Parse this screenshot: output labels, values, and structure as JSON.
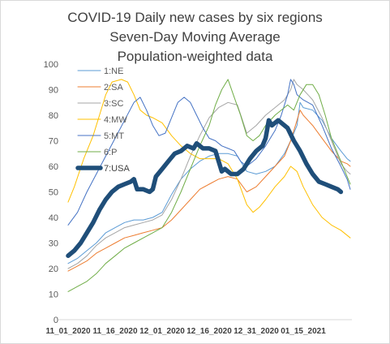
{
  "chart_data": {
    "type": "line",
    "title_lines": [
      "COVID-19 Daily new cases by six regions",
      "Seven-Day Moving Average",
      "Population-weighted data"
    ],
    "ylim": [
      0,
      100
    ],
    "yticks": [
      "0",
      "10",
      "20",
      "30",
      "40",
      "50",
      "60",
      "70",
      "80",
      "90",
      "100"
    ],
    "grid": false,
    "legend_position": "upper-left inside plot",
    "x_tick_labels": [
      "11_01_2020",
      "11_16_2020",
      "12_01_2020",
      "12_16_2020",
      "12_31_2020",
      "01_15_2021"
    ],
    "x_day_ticks": [
      0,
      15,
      30,
      45,
      60,
      75
    ],
    "x_day_max": 90,
    "series": [
      {
        "name": "1:NE",
        "color": "#5b9bd5",
        "points": [
          [
            0,
            22
          ],
          [
            3,
            24
          ],
          [
            6,
            27
          ],
          [
            9,
            30
          ],
          [
            12,
            34
          ],
          [
            15,
            36
          ],
          [
            18,
            38
          ],
          [
            21,
            39
          ],
          [
            24,
            39
          ],
          [
            27,
            40
          ],
          [
            30,
            42
          ],
          [
            33,
            49
          ],
          [
            36,
            55
          ],
          [
            39,
            59
          ],
          [
            42,
            62
          ],
          [
            45,
            64
          ],
          [
            48,
            65
          ],
          [
            51,
            65
          ],
          [
            54,
            64
          ],
          [
            57,
            58
          ],
          [
            60,
            57
          ],
          [
            63,
            58
          ],
          [
            66,
            60
          ],
          [
            69,
            65
          ],
          [
            71,
            70
          ],
          [
            73,
            76
          ],
          [
            74,
            85
          ],
          [
            75,
            83
          ],
          [
            78,
            82
          ],
          [
            81,
            78
          ],
          [
            84,
            71
          ],
          [
            87,
            66
          ],
          [
            89,
            63
          ],
          [
            90,
            62
          ]
        ]
      },
      {
        "name": "2:SA",
        "color": "#ed7d31",
        "points": [
          [
            0,
            19
          ],
          [
            3,
            21
          ],
          [
            6,
            23
          ],
          [
            9,
            26
          ],
          [
            12,
            28
          ],
          [
            15,
            30
          ],
          [
            18,
            32
          ],
          [
            21,
            33
          ],
          [
            24,
            34
          ],
          [
            27,
            35
          ],
          [
            30,
            36
          ],
          [
            33,
            39
          ],
          [
            36,
            43
          ],
          [
            39,
            47
          ],
          [
            42,
            51
          ],
          [
            45,
            53
          ],
          [
            48,
            55
          ],
          [
            51,
            56
          ],
          [
            54,
            55
          ],
          [
            57,
            50
          ],
          [
            60,
            52
          ],
          [
            63,
            56
          ],
          [
            66,
            60
          ],
          [
            69,
            64
          ],
          [
            71,
            70
          ],
          [
            73,
            78
          ],
          [
            74,
            82
          ],
          [
            75,
            80
          ],
          [
            78,
            76
          ],
          [
            81,
            71
          ],
          [
            84,
            66
          ],
          [
            87,
            62
          ],
          [
            89,
            61
          ],
          [
            90,
            60
          ]
        ]
      },
      {
        "name": "3:SC",
        "color": "#a5a5a5",
        "points": [
          [
            0,
            20
          ],
          [
            3,
            22
          ],
          [
            6,
            25
          ],
          [
            9,
            29
          ],
          [
            12,
            32
          ],
          [
            15,
            34
          ],
          [
            18,
            36
          ],
          [
            21,
            37
          ],
          [
            24,
            38
          ],
          [
            27,
            39
          ],
          [
            30,
            41
          ],
          [
            33,
            47
          ],
          [
            36,
            55
          ],
          [
            39,
            64
          ],
          [
            42,
            72
          ],
          [
            45,
            79
          ],
          [
            48,
            83
          ],
          [
            51,
            85
          ],
          [
            54,
            84
          ],
          [
            57,
            73
          ],
          [
            60,
            76
          ],
          [
            63,
            80
          ],
          [
            66,
            83
          ],
          [
            69,
            86
          ],
          [
            71,
            90
          ],
          [
            72,
            94
          ],
          [
            73,
            92
          ],
          [
            75,
            90
          ],
          [
            78,
            86
          ],
          [
            81,
            79
          ],
          [
            84,
            70
          ],
          [
            87,
            61
          ],
          [
            89,
            58
          ],
          [
            90,
            57
          ]
        ]
      },
      {
        "name": "4:MW",
        "color": "#ffc000",
        "points": [
          [
            0,
            46
          ],
          [
            2,
            52
          ],
          [
            5,
            63
          ],
          [
            8,
            72
          ],
          [
            10,
            80
          ],
          [
            12,
            88
          ],
          [
            14,
            93
          ],
          [
            17,
            94
          ],
          [
            19,
            93
          ],
          [
            21,
            88
          ],
          [
            23,
            82
          ],
          [
            25,
            80
          ],
          [
            27,
            79
          ],
          [
            30,
            77
          ],
          [
            33,
            72
          ],
          [
            36,
            68
          ],
          [
            39,
            65
          ],
          [
            42,
            63
          ],
          [
            45,
            63
          ],
          [
            48,
            63
          ],
          [
            51,
            61
          ],
          [
            54,
            55
          ],
          [
            57,
            45
          ],
          [
            59,
            42
          ],
          [
            61,
            44
          ],
          [
            63,
            47
          ],
          [
            66,
            52
          ],
          [
            69,
            56
          ],
          [
            71,
            60
          ],
          [
            73,
            58
          ],
          [
            75,
            52
          ],
          [
            78,
            45
          ],
          [
            81,
            40
          ],
          [
            84,
            37
          ],
          [
            87,
            35
          ],
          [
            90,
            32
          ]
        ]
      },
      {
        "name": "5:MT",
        "color": "#4472c4",
        "points": [
          [
            0,
            37
          ],
          [
            3,
            42
          ],
          [
            6,
            50
          ],
          [
            9,
            57
          ],
          [
            12,
            64
          ],
          [
            15,
            71
          ],
          [
            18,
            78
          ],
          [
            21,
            85
          ],
          [
            23,
            87
          ],
          [
            25,
            82
          ],
          [
            27,
            76
          ],
          [
            29,
            72
          ],
          [
            31,
            73
          ],
          [
            33,
            79
          ],
          [
            35,
            85
          ],
          [
            37,
            87
          ],
          [
            39,
            85
          ],
          [
            41,
            80
          ],
          [
            43,
            75
          ],
          [
            45,
            71
          ],
          [
            47,
            70
          ],
          [
            49,
            68
          ],
          [
            51,
            67
          ],
          [
            53,
            66
          ],
          [
            55,
            62
          ],
          [
            57,
            60
          ],
          [
            60,
            63
          ],
          [
            63,
            68
          ],
          [
            66,
            74
          ],
          [
            68,
            80
          ],
          [
            70,
            88
          ],
          [
            71,
            94
          ],
          [
            72,
            92
          ],
          [
            73,
            88
          ],
          [
            75,
            86
          ],
          [
            78,
            84
          ],
          [
            81,
            76
          ],
          [
            84,
            67
          ],
          [
            87,
            60
          ],
          [
            89,
            55
          ],
          [
            90,
            51
          ]
        ]
      },
      {
        "name": "6:P",
        "color": "#70ad47",
        "points": [
          [
            0,
            11
          ],
          [
            3,
            13
          ],
          [
            6,
            15
          ],
          [
            9,
            18
          ],
          [
            12,
            22
          ],
          [
            15,
            25
          ],
          [
            18,
            28
          ],
          [
            21,
            30
          ],
          [
            24,
            32
          ],
          [
            27,
            34
          ],
          [
            30,
            36
          ],
          [
            33,
            42
          ],
          [
            36,
            50
          ],
          [
            39,
            59
          ],
          [
            42,
            68
          ],
          [
            45,
            76
          ],
          [
            47,
            84
          ],
          [
            49,
            90
          ],
          [
            51,
            94
          ],
          [
            53,
            87
          ],
          [
            55,
            80
          ],
          [
            57,
            72
          ],
          [
            59,
            70
          ],
          [
            61,
            72
          ],
          [
            63,
            76
          ],
          [
            66,
            80
          ],
          [
            68,
            82
          ],
          [
            70,
            84
          ],
          [
            72,
            82
          ],
          [
            74,
            88
          ],
          [
            76,
            92
          ],
          [
            78,
            92
          ],
          [
            80,
            88
          ],
          [
            82,
            80
          ],
          [
            84,
            71
          ],
          [
            87,
            62
          ],
          [
            89,
            56
          ],
          [
            90,
            53
          ]
        ]
      },
      {
        "name": "7:USA",
        "color": "#1f4e79",
        "bold": true,
        "points": [
          [
            0,
            25
          ],
          [
            2,
            27
          ],
          [
            4,
            30
          ],
          [
            6,
            34
          ],
          [
            8,
            38
          ],
          [
            10,
            43
          ],
          [
            12,
            47
          ],
          [
            14,
            50
          ],
          [
            16,
            52
          ],
          [
            18,
            53
          ],
          [
            20,
            54
          ],
          [
            21,
            55
          ],
          [
            22,
            51
          ],
          [
            24,
            51
          ],
          [
            26,
            50
          ],
          [
            27,
            51
          ],
          [
            28,
            56
          ],
          [
            30,
            59
          ],
          [
            32,
            62
          ],
          [
            34,
            65
          ],
          [
            36,
            66
          ],
          [
            38,
            68
          ],
          [
            40,
            67
          ],
          [
            41,
            69
          ],
          [
            43,
            67
          ],
          [
            45,
            67
          ],
          [
            47,
            66
          ],
          [
            48,
            62
          ],
          [
            49,
            58
          ],
          [
            50,
            59
          ],
          [
            52,
            57
          ],
          [
            54,
            57
          ],
          [
            56,
            59
          ],
          [
            58,
            63
          ],
          [
            60,
            66
          ],
          [
            62,
            68
          ],
          [
            63,
            71
          ],
          [
            64,
            78
          ],
          [
            65,
            76
          ],
          [
            66,
            77
          ],
          [
            67,
            78
          ],
          [
            68,
            77
          ],
          [
            70,
            75
          ],
          [
            72,
            70
          ],
          [
            74,
            66
          ],
          [
            76,
            61
          ],
          [
            78,
            57
          ],
          [
            80,
            54
          ],
          [
            82,
            53
          ],
          [
            84,
            52
          ],
          [
            86,
            51
          ],
          [
            87,
            50
          ]
        ]
      }
    ]
  }
}
